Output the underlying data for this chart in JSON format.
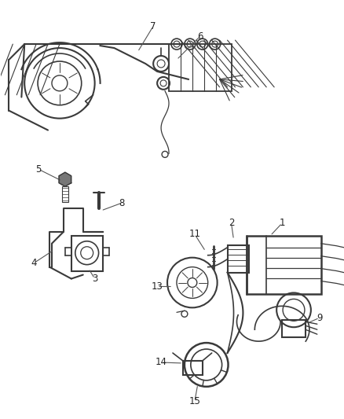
{
  "bg_color": "#ffffff",
  "line_color": "#3a3a3a",
  "text_color": "#222222",
  "fig_width": 4.39,
  "fig_height": 5.33,
  "dpi": 100
}
